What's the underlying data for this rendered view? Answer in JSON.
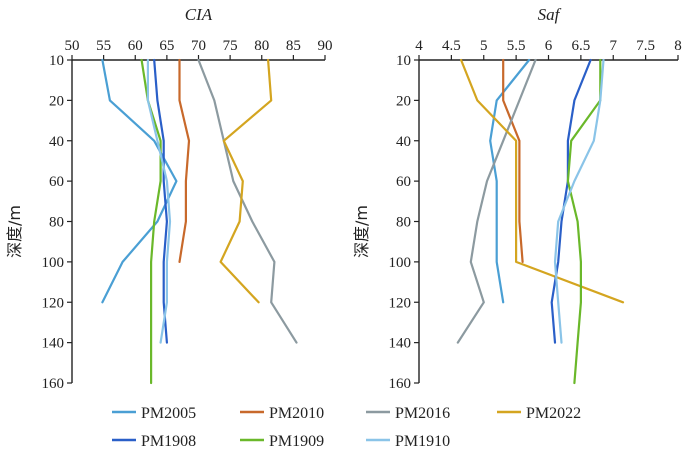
{
  "chart_data": [
    {
      "type": "line",
      "title": "CIA",
      "ylabel": "深度/m",
      "xlim": [
        50,
        90
      ],
      "xticks": [
        "50",
        "55",
        "60",
        "65",
        "70",
        "75",
        "80",
        "85",
        "90"
      ],
      "ylim": [
        160,
        10
      ],
      "yticks": [
        "10",
        "20",
        "40",
        "60",
        "80",
        "100",
        "120",
        "140",
        "160"
      ],
      "series": [
        {
          "name": "PM2005",
          "color": "#4a9fd4",
          "depth": [
            10,
            20,
            40,
            60,
            80,
            100,
            120
          ],
          "values": [
            54.8,
            56.0,
            63.0,
            66.5,
            63.5,
            58.0,
            54.8
          ]
        },
        {
          "name": "PM2010",
          "color": "#c8692b",
          "depth": [
            10,
            20,
            40,
            60,
            80,
            100
          ],
          "values": [
            67.0,
            67.0,
            68.5,
            68.0,
            68.0,
            67.0
          ]
        },
        {
          "name": "PM2016",
          "color": "#8c9aa0",
          "depth": [
            10,
            20,
            40,
            60,
            80,
            100,
            120,
            140
          ],
          "values": [
            70.0,
            72.5,
            74.0,
            75.5,
            78.5,
            82.0,
            81.5,
            85.5
          ]
        },
        {
          "name": "PM2022",
          "color": "#d4a520",
          "depth": [
            10,
            20,
            40,
            60,
            80,
            100,
            120
          ],
          "values": [
            81.0,
            81.5,
            74.0,
            77.0,
            76.5,
            73.5,
            79.5
          ]
        },
        {
          "name": "PM1908",
          "color": "#2a5fc8",
          "depth": [
            10,
            20,
            40,
            60,
            80,
            100,
            120,
            140
          ],
          "values": [
            63.0,
            63.5,
            64.5,
            64.5,
            65.0,
            64.5,
            64.5,
            65.0
          ]
        },
        {
          "name": "PM1909",
          "color": "#6ab82a",
          "depth": [
            10,
            20,
            40,
            60,
            80,
            100,
            120,
            140,
            160
          ],
          "values": [
            61.0,
            62.0,
            64.0,
            64.0,
            63.0,
            62.5,
            62.5,
            62.5,
            62.5
          ]
        },
        {
          "name": "PM1910",
          "color": "#8ac4e8",
          "depth": [
            10,
            20,
            40,
            60,
            80,
            100,
            120,
            140
          ],
          "values": [
            62.0,
            62.0,
            63.5,
            65.0,
            65.5,
            65.0,
            65.0,
            64.0
          ]
        }
      ]
    },
    {
      "type": "line",
      "title": "Saf",
      "ylabel": "深度/m",
      "xlim": [
        4,
        8
      ],
      "xticks": [
        "4",
        "4.5",
        "5",
        "5.5",
        "6",
        "6.5",
        "7",
        "7.5",
        "8"
      ],
      "ylim": [
        160,
        10
      ],
      "yticks": [
        "10",
        "20",
        "40",
        "60",
        "80",
        "100",
        "120",
        "140",
        "160"
      ],
      "series": [
        {
          "name": "PM2005",
          "color": "#4a9fd4",
          "depth": [
            10,
            20,
            40,
            60,
            80,
            100,
            120
          ],
          "values": [
            5.7,
            5.2,
            5.1,
            5.2,
            5.2,
            5.2,
            5.3
          ]
        },
        {
          "name": "PM2010",
          "color": "#c8692b",
          "depth": [
            10,
            20,
            40,
            60,
            80,
            100
          ],
          "values": [
            5.3,
            5.3,
            5.55,
            5.55,
            5.55,
            5.6
          ]
        },
        {
          "name": "PM2016",
          "color": "#8c9aa0",
          "depth": [
            10,
            20,
            40,
            60,
            80,
            100,
            120,
            140
          ],
          "values": [
            5.8,
            5.55,
            5.3,
            5.05,
            4.9,
            4.8,
            5.0,
            4.6
          ]
        },
        {
          "name": "PM2022",
          "color": "#d4a520",
          "depth": [
            10,
            20,
            40,
            60,
            80,
            100,
            120
          ],
          "values": [
            4.65,
            4.9,
            5.5,
            5.5,
            5.5,
            5.5,
            7.15
          ]
        },
        {
          "name": "PM1908",
          "color": "#2a5fc8",
          "depth": [
            10,
            20,
            40,
            60,
            80,
            100,
            120,
            140
          ],
          "values": [
            6.65,
            6.4,
            6.3,
            6.3,
            6.2,
            6.15,
            6.05,
            6.1
          ]
        },
        {
          "name": "PM1909",
          "color": "#6ab82a",
          "depth": [
            10,
            20,
            40,
            60,
            80,
            100,
            120,
            140,
            160
          ],
          "values": [
            6.8,
            6.8,
            6.35,
            6.3,
            6.45,
            6.5,
            6.5,
            6.45,
            6.4
          ]
        },
        {
          "name": "PM1910",
          "color": "#8ac4e8",
          "depth": [
            10,
            20,
            40,
            60,
            80,
            100,
            120,
            140
          ],
          "values": [
            6.85,
            6.8,
            6.7,
            6.4,
            6.15,
            6.1,
            6.15,
            6.2
          ]
        }
      ]
    }
  ],
  "legend": [
    {
      "name": "PM2005",
      "color": "#4a9fd4"
    },
    {
      "name": "PM2010",
      "color": "#c8692b"
    },
    {
      "name": "PM2016",
      "color": "#8c9aa0"
    },
    {
      "name": "PM2022",
      "color": "#d4a520"
    },
    {
      "name": "PM1908",
      "color": "#2a5fc8"
    },
    {
      "name": "PM1909",
      "color": "#6ab82a"
    },
    {
      "name": "PM1910",
      "color": "#8ac4e8"
    }
  ]
}
